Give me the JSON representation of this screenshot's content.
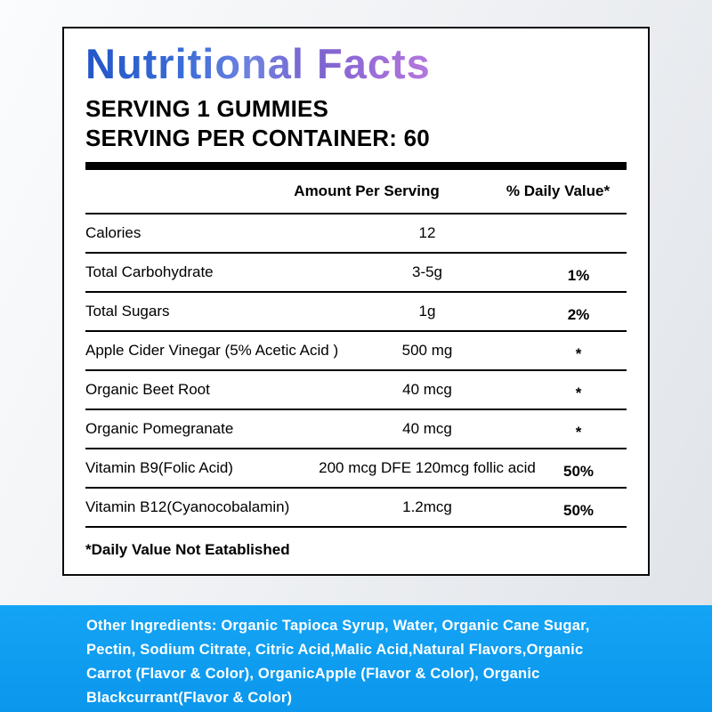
{
  "panel": {
    "title": "Nutritional Facts",
    "serving_line1": "SERVING 1 GUMMIES",
    "serving_line2": "SERVING PER CONTAINER: 60",
    "col_amount": "Amount Per Serving",
    "col_daily": "% Daily Value*",
    "rows": [
      {
        "name": "Calories",
        "amount": "12",
        "daily": ""
      },
      {
        "name": "Total Carbohydrate",
        "amount": "3-5g",
        "daily": "1%"
      },
      {
        "name": "Total Sugars",
        "amount": "1g",
        "daily": "2%"
      },
      {
        "name": "Apple Cider Vinegar (5% Acetic Acid )",
        "amount": "500 mg",
        "daily": "*"
      },
      {
        "name": "Organic Beet Root",
        "amount": "40 mcg",
        "daily": "*"
      },
      {
        "name": "Organic Pomegranate",
        "amount": "40 mcg",
        "daily": "*"
      },
      {
        "name": "Vitamin B9(Folic Acid)",
        "amount": "200 mcg DFE 120mcg follic acid",
        "daily": "50%"
      },
      {
        "name": "Vitamin B12(Cyanocobalamin)",
        "amount": "1.2mcg",
        "daily": "50%"
      }
    ],
    "footnote": "*Daily Value Not Eatablished"
  },
  "ingredients": {
    "lines": [
      "Other Ingredients: Organic Tapioca Syrup, Water, Organic Cane Sugar,",
      "Pectin, Sodium Citrate, Citric Acid,Malic Acid,Natural Flavors,Organic",
      "Carrot (Flavor & Color), OrganicApple (Flavor & Color), Organic",
      "Blackcurrant(Flavor & Color)"
    ]
  },
  "colors": {
    "band_blue": "#0b9bf0",
    "title_gradient_start": "#2356c8",
    "title_gradient_mid": "#6f83e0",
    "title_gradient_end": "#b478de",
    "border_black": "#0a0a0a"
  }
}
